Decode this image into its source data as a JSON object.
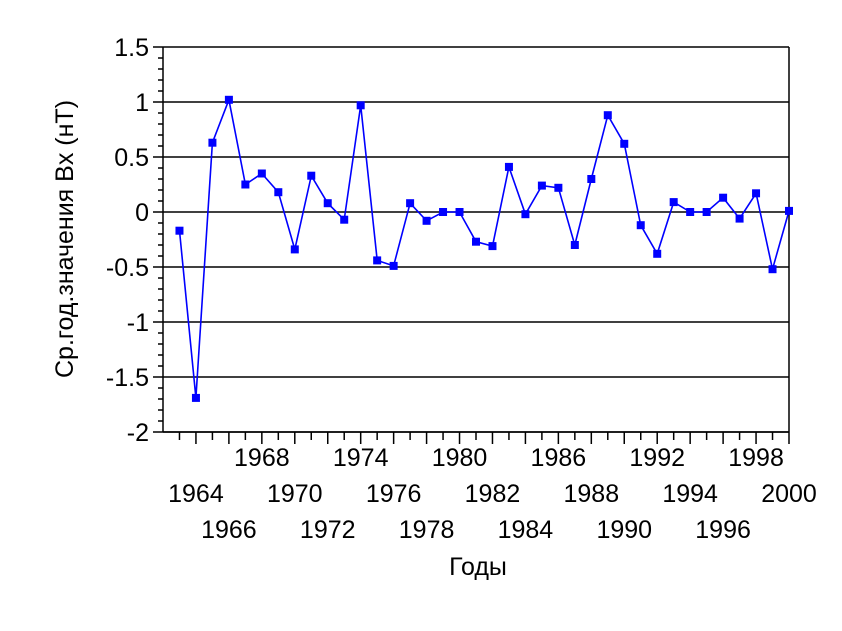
{
  "chart_data": {
    "type": "line",
    "title": "",
    "xlabel": "Годы",
    "ylabel": "Ср.год.значения Bx  (нT)",
    "ylim": [
      -2,
      1.5
    ],
    "yticks": [
      1.5,
      1,
      0.5,
      0,
      -0.5,
      -1,
      -1.5,
      -2
    ],
    "ytick_labels": [
      "1.5",
      "1",
      "0.5",
      "0",
      "-0.5",
      "-1",
      "-1.5",
      "-2"
    ],
    "xlim": [
      1962,
      2000
    ],
    "xtick_labels": [
      "1964",
      "1966",
      "1968",
      "1970",
      "1972",
      "1974",
      "1976",
      "1978",
      "1980",
      "1982",
      "1984",
      "1986",
      "1988",
      "1990",
      "1992",
      "1994",
      "1996",
      "1998",
      "2000"
    ],
    "xtick_label_values": [
      1964,
      1966,
      1968,
      1970,
      1972,
      1974,
      1976,
      1978,
      1980,
      1982,
      1984,
      1986,
      1988,
      1990,
      1992,
      1994,
      1996,
      1998,
      2000
    ],
    "grid": "horizontal",
    "color": "#0000ff",
    "series": [
      {
        "x": [
          1963,
          1964,
          1965,
          1966,
          1967,
          1968,
          1969,
          1970,
          1971,
          1972,
          1973,
          1974,
          1975,
          1976,
          1977,
          1978,
          1979,
          1980,
          1981,
          1982,
          1983,
          1984,
          1985,
          1986,
          1987,
          1988,
          1989,
          1990,
          1991,
          1992,
          1993,
          1994,
          1995,
          1996,
          1997,
          1998,
          1999,
          2000
        ],
        "values": [
          -0.17,
          -1.69,
          0.63,
          1.02,
          0.25,
          0.35,
          0.18,
          -0.34,
          0.33,
          0.08,
          -0.07,
          0.97,
          -0.44,
          -0.49,
          0.08,
          -0.08,
          0.0,
          0.0,
          -0.27,
          -0.31,
          0.41,
          -0.02,
          0.24,
          0.22,
          -0.3,
          0.3,
          0.88,
          0.62,
          -0.12,
          -0.38,
          0.09,
          0.0,
          0.0,
          0.13,
          -0.06,
          0.17,
          -0.52,
          0.01
        ]
      }
    ]
  }
}
